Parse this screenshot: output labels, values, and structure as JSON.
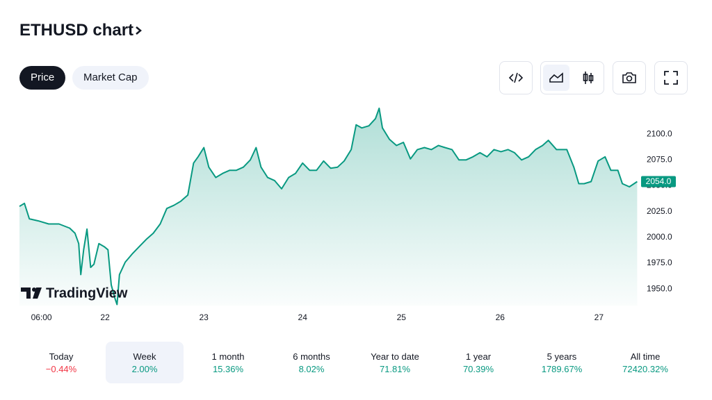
{
  "header": {
    "title": "ETHUSD chart"
  },
  "tabs": [
    {
      "label": "Price",
      "selected": true
    },
    {
      "label": "Market Cap",
      "selected": false
    }
  ],
  "logo": {
    "text": "TradingView"
  },
  "chart_data": {
    "type": "area",
    "color": "#089981",
    "x": [
      3.2,
      4.4,
      5.6,
      7.8,
      10.3,
      12.8,
      15.4,
      16.7,
      17.6,
      18.1,
      18.8,
      19.6,
      20.5,
      21.3,
      22.5,
      23.8,
      24.7,
      25.5,
      26.4,
      26.9,
      27.5,
      28.9,
      30.6,
      32.3,
      34.0,
      35.7,
      37.4,
      39.0,
      40.7,
      42.4,
      44.1,
      45.5,
      46.6,
      48.0,
      49.2,
      50.9,
      52.6,
      54.3,
      55.9,
      57.6,
      59.3,
      60.7,
      61.9,
      63.5,
      65.2,
      66.9,
      68.6,
      70.3,
      72.0,
      73.7,
      75.4,
      77.1,
      78.8,
      80.5,
      82.1,
      83.8,
      85.0,
      86.4,
      88.1,
      89.7,
      90.6,
      91.4,
      93.1,
      94.8,
      96.5,
      98.2,
      99.9,
      101.6,
      103.3,
      105.0,
      106.6,
      108.3,
      110.0,
      111.7,
      113.4,
      115.1,
      116.8,
      118.5,
      120.2,
      121.9,
      123.5,
      125.2,
      126.9,
      128.6,
      130.3,
      131.7,
      133.7,
      136.2,
      137.9,
      139.1,
      140.4,
      142.1,
      143.8,
      145.5,
      146.9,
      148.6,
      149.7,
      151.4,
      153.3
    ],
    "series": [
      {
        "name": "ETHUSD",
        "values": [
          2030,
          2033,
          2018,
          2016,
          2013,
          2013,
          2009,
          2004,
          1994,
          1964,
          1988,
          2008,
          1971,
          1974,
          1994,
          1991,
          1988,
          1954,
          1941,
          1935,
          1964,
          1976,
          1984,
          1991,
          1998,
          2004,
          2013,
          2028,
          2031,
          2035,
          2041,
          2072,
          2078,
          2087,
          2068,
          2058,
          2062,
          2065,
          2065,
          2068,
          2075,
          2087,
          2068,
          2058,
          2055,
          2047,
          2058,
          2062,
          2072,
          2065,
          2065,
          2074,
          2067,
          2068,
          2074,
          2085,
          2109,
          2106,
          2108,
          2115,
          2125,
          2106,
          2095,
          2089,
          2092,
          2076,
          2085,
          2087,
          2085,
          2089,
          2087,
          2085,
          2075,
          2075,
          2078,
          2082,
          2078,
          2085,
          2083,
          2085,
          2082,
          2075,
          2078,
          2085,
          2089,
          2094,
          2085,
          2085,
          2068,
          2052,
          2052,
          2054,
          2074,
          2078,
          2065,
          2065,
          2052,
          2049,
          2054
        ]
      }
    ],
    "xlim": [
      3.2,
      153.4
    ],
    "xticks": [
      {
        "value": 6,
        "label": "06:00"
      },
      {
        "value": 24,
        "label": "22"
      },
      {
        "value": 48,
        "label": "23"
      },
      {
        "value": 72,
        "label": "24"
      },
      {
        "value": 96,
        "label": "25"
      },
      {
        "value": 120,
        "label": "26"
      },
      {
        "value": 144,
        "label": "27"
      }
    ],
    "ylim": [
      1934,
      2129
    ],
    "yticks": [
      {
        "value": 1950,
        "label": "1950.0"
      },
      {
        "value": 1975,
        "label": "1975.0"
      },
      {
        "value": 2000,
        "label": "2000.0"
      },
      {
        "value": 2025,
        "label": "2025.0"
      },
      {
        "value": 2050,
        "label": "2050.0"
      },
      {
        "value": 2075,
        "label": "2075.0"
      },
      {
        "value": 2100,
        "label": "2100.0"
      }
    ],
    "price_tag": {
      "value": 2054,
      "label": "2054.0"
    }
  },
  "periods": [
    {
      "label": "Today",
      "change": "−0.44%",
      "selected": false
    },
    {
      "label": "Week",
      "change": "2.00%",
      "selected": true
    },
    {
      "label": "1 month",
      "change": "15.36%",
      "selected": false
    },
    {
      "label": "6 months",
      "change": "8.02%",
      "selected": false
    },
    {
      "label": "Year to date",
      "change": "71.81%",
      "selected": false
    },
    {
      "label": "1 year",
      "change": "70.39%",
      "selected": false
    },
    {
      "label": "5 years",
      "change": "1789.67%",
      "selected": false
    },
    {
      "label": "All time",
      "change": "72420.32%",
      "selected": false
    }
  ]
}
